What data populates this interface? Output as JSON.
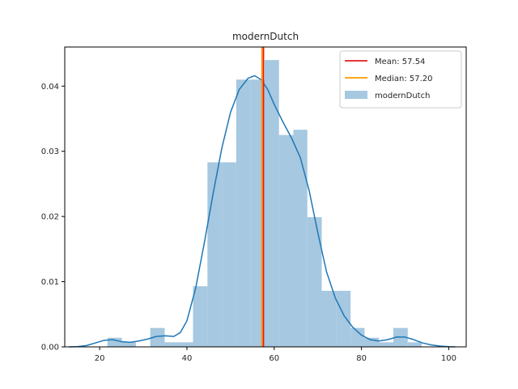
{
  "chart_data": {
    "type": "histogram",
    "title": "modernDutch",
    "xlabel": "",
    "ylabel": "",
    "xlim": [
      12,
      104
    ],
    "ylim": [
      0,
      0.046
    ],
    "xticks": [
      20,
      40,
      60,
      80,
      100
    ],
    "yticks": [
      0.0,
      0.01,
      0.02,
      0.03,
      0.04
    ],
    "ytick_labels": [
      "0.00",
      "0.01",
      "0.02",
      "0.03",
      "0.04"
    ],
    "histogram": {
      "name": "modernDutch",
      "color": "#a6c8e0",
      "bins": [
        {
          "x0": 21.8,
          "x1": 25.1,
          "density": 0.0014
        },
        {
          "x0": 25.1,
          "x1": 28.3,
          "density": 0.0007
        },
        {
          "x0": 28.3,
          "x1": 31.6,
          "density": 0.0
        },
        {
          "x0": 31.6,
          "x1": 34.9,
          "density": 0.0029
        },
        {
          "x0": 34.9,
          "x1": 38.2,
          "density": 0.0007
        },
        {
          "x0": 38.2,
          "x1": 41.4,
          "density": 0.0007
        },
        {
          "x0": 41.4,
          "x1": 44.7,
          "density": 0.0093
        },
        {
          "x0": 44.7,
          "x1": 48.0,
          "density": 0.0283
        },
        {
          "x0": 48.0,
          "x1": 51.3,
          "density": 0.0283
        },
        {
          "x0": 51.3,
          "x1": 54.5,
          "density": 0.041
        },
        {
          "x0": 54.5,
          "x1": 57.8,
          "density": 0.041
        },
        {
          "x0": 57.8,
          "x1": 61.1,
          "density": 0.044
        },
        {
          "x0": 61.1,
          "x1": 64.4,
          "density": 0.0325
        },
        {
          "x0": 64.4,
          "x1": 67.6,
          "density": 0.0333
        },
        {
          "x0": 67.6,
          "x1": 70.9,
          "density": 0.0199
        },
        {
          "x0": 70.9,
          "x1": 74.2,
          "density": 0.0086
        },
        {
          "x0": 74.2,
          "x1": 77.5,
          "density": 0.0086
        },
        {
          "x0": 77.5,
          "x1": 80.7,
          "density": 0.0029
        },
        {
          "x0": 80.7,
          "x1": 84.0,
          "density": 0.0014
        },
        {
          "x0": 84.0,
          "x1": 87.3,
          "density": 0.0007
        },
        {
          "x0": 87.3,
          "x1": 90.6,
          "density": 0.0029
        },
        {
          "x0": 90.6,
          "x1": 93.8,
          "density": 0.0007
        }
      ]
    },
    "kde": {
      "color": "#1f77b4",
      "points": [
        [
          13,
          0.0
        ],
        [
          15,
          5e-05
        ],
        [
          17,
          0.0002
        ],
        [
          19,
          0.0006
        ],
        [
          21,
          0.001
        ],
        [
          23,
          0.0011
        ],
        [
          25,
          0.0008
        ],
        [
          27,
          0.0007
        ],
        [
          29,
          0.0009
        ],
        [
          31,
          0.0012
        ],
        [
          33,
          0.0016
        ],
        [
          35,
          0.0017
        ],
        [
          37,
          0.0016
        ],
        [
          38.5,
          0.0022
        ],
        [
          40,
          0.004
        ],
        [
          42,
          0.009
        ],
        [
          44,
          0.016
        ],
        [
          46,
          0.0235
        ],
        [
          48,
          0.0305
        ],
        [
          50,
          0.036
        ],
        [
          52,
          0.0395
        ],
        [
          54,
          0.0412
        ],
        [
          55.5,
          0.0416
        ],
        [
          57,
          0.041
        ],
        [
          58.5,
          0.0395
        ],
        [
          60,
          0.0372
        ],
        [
          62,
          0.0345
        ],
        [
          64,
          0.032
        ],
        [
          66,
          0.029
        ],
        [
          68,
          0.024
        ],
        [
          70,
          0.0175
        ],
        [
          72,
          0.0115
        ],
        [
          74,
          0.0075
        ],
        [
          76,
          0.0048
        ],
        [
          78,
          0.003
        ],
        [
          80,
          0.0018
        ],
        [
          82,
          0.0011
        ],
        [
          84,
          0.0009
        ],
        [
          86,
          0.0011
        ],
        [
          88,
          0.0015
        ],
        [
          90,
          0.0015
        ],
        [
          92,
          0.0011
        ],
        [
          94,
          0.0006
        ],
        [
          96,
          0.0003
        ],
        [
          98,
          0.00012
        ],
        [
          100,
          3e-05
        ],
        [
          101.5,
          0.0
        ]
      ]
    },
    "lines": [
      {
        "label": "Mean: 57.54",
        "x": 57.54,
        "color": "#e41a1c"
      },
      {
        "label": "Median: 57.20",
        "x": 57.2,
        "color": "#ff9900"
      }
    ],
    "legend": {
      "placement": "top-right",
      "entries": [
        {
          "label": "Mean: 57.54",
          "kind": "line",
          "color": "#e41a1c"
        },
        {
          "label": "Median: 57.20",
          "kind": "line",
          "color": "#ff9900"
        },
        {
          "label": "modernDutch",
          "kind": "patch",
          "color": "#a6c8e0"
        }
      ]
    }
  }
}
